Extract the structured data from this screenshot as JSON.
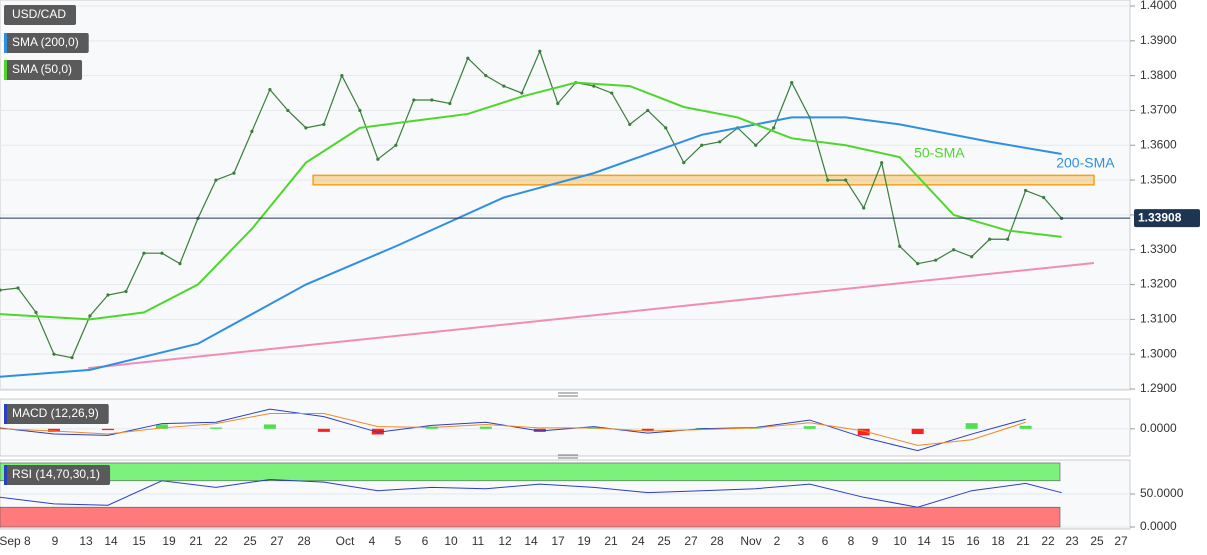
{
  "chart_data": [
    {
      "type": "price",
      "title": "USD/CAD",
      "x": [
        0,
        1,
        2,
        3,
        4,
        5,
        6,
        7,
        8,
        9,
        10,
        11,
        12,
        13,
        14,
        15,
        16,
        17,
        18,
        19,
        20,
        21,
        22,
        23,
        24,
        25,
        26,
        27,
        28,
        29,
        30,
        31,
        32,
        33,
        34,
        35,
        36,
        37,
        38,
        39,
        40,
        41,
        42,
        43,
        44,
        45,
        46,
        47,
        48,
        49,
        50,
        51,
        52,
        53,
        54,
        55,
        56,
        57,
        58,
        59
      ],
      "series": [
        {
          "name": "USD/CAD",
          "color": "#3b7d3b",
          "values": [
            1.3184,
            1.319,
            1.312,
            1.3,
            1.299,
            1.311,
            1.317,
            1.318,
            1.329,
            1.329,
            1.326,
            1.339,
            1.35,
            1.352,
            1.364,
            1.376,
            1.37,
            1.365,
            1.366,
            1.38,
            1.37,
            1.356,
            1.36,
            1.373,
            1.373,
            1.372,
            1.385,
            1.38,
            1.377,
            1.375,
            1.387,
            1.372,
            1.378,
            1.377,
            1.375,
            1.366,
            1.37,
            1.365,
            1.355,
            1.36,
            1.361,
            1.365,
            1.36,
            1.365,
            1.378,
            1.368,
            1.35,
            1.35,
            1.342,
            1.355,
            1.331,
            1.326,
            1.327,
            1.33,
            1.328,
            1.333,
            1.333,
            1.347,
            1.345,
            1.339
          ]
        },
        {
          "name": "SMA (200,0)",
          "color": "#2f8fe0",
          "x": [
            0,
            5,
            11,
            17,
            22,
            28,
            33,
            39,
            44,
            47,
            50,
            55,
            59
          ],
          "values": [
            1.2935,
            1.2955,
            1.303,
            1.32,
            1.331,
            1.345,
            1.352,
            1.363,
            1.368,
            1.368,
            1.366,
            1.361,
            1.3575
          ]
        },
        {
          "name": "SMA (50,0)",
          "color": "#4fd62a",
          "x": [
            0,
            5,
            8,
            11,
            14,
            17,
            20,
            23,
            26,
            29,
            32,
            35,
            38,
            41,
            44,
            47,
            50,
            53,
            56,
            59
          ],
          "values": [
            1.3115,
            1.31,
            1.312,
            1.32,
            1.336,
            1.355,
            1.365,
            1.367,
            1.369,
            1.374,
            1.378,
            1.377,
            1.371,
            1.368,
            1.362,
            1.36,
            1.3566,
            1.34,
            1.3355,
            1.3337
          ]
        }
      ],
      "xlim": [
        0,
        62.8
      ],
      "ylim": [
        1.29,
        1.4
      ],
      "yticks": [
        {
          "value": 1.4,
          "label": "1.4000"
        },
        {
          "value": 1.39,
          "label": "1.3900"
        },
        {
          "value": 1.38,
          "label": "1.3800"
        },
        {
          "value": 1.37,
          "label": "1.3700"
        },
        {
          "value": 1.36,
          "label": "1.3600"
        },
        {
          "value": 1.35,
          "label": "1.3500"
        },
        {
          "value": 1.34,
          "label": "1.3400"
        },
        {
          "value": 1.33,
          "label": "1.3300"
        },
        {
          "value": 1.32,
          "label": "1.3200"
        },
        {
          "value": 1.31,
          "label": "1.3100"
        },
        {
          "value": 1.3,
          "label": "1.3000"
        },
        {
          "value": 1.29,
          "label": "1.2900"
        }
      ],
      "date_labels": [
        "Sep 8",
        "9",
        "13",
        "14",
        "15",
        "19",
        "21",
        "22",
        "25",
        "27",
        "28",
        "Oct",
        "4",
        "5",
        "6",
        "10",
        "11",
        "12",
        "14",
        "17",
        "19",
        "21",
        "24",
        "25",
        "27",
        "28",
        "Nov",
        "2",
        "3",
        "6",
        "8",
        "9",
        "10",
        "14",
        "15",
        "16",
        "18",
        "21",
        "22",
        "23",
        "25",
        "27"
      ],
      "annotations": [
        {
          "text": "50-SMA",
          "x": 50.8,
          "y": 1.3575,
          "color": "#4fd62a"
        },
        {
          "text": "200-SMA",
          "x": 58.7,
          "y": 1.3547,
          "color": "#2f8fe0"
        }
      ],
      "zone": {
        "xlim": [
          17.4,
          60.8
        ],
        "ylim": [
          1.3495,
          1.3505
        ],
        "color": "#f4a21a"
      },
      "trendline": {
        "x": [
          4.9,
          60.8
        ],
        "y": [
          1.296,
          1.3262
        ],
        "color": "#f28cb4"
      },
      "last_price": {
        "value": 1.33908,
        "label": "1.33908"
      }
    },
    {
      "type": "macd",
      "title": "MACD (12,26,9)",
      "x": [
        0,
        3,
        6,
        9,
        12,
        15,
        18,
        21,
        24,
        27,
        30,
        33,
        36,
        39,
        42,
        45,
        48,
        51,
        54,
        57
      ],
      "series": [
        {
          "color": "#2b3fbf",
          "values": [
            0.0002,
            -0.0012,
            -0.0015,
            0.0012,
            0.0015,
            0.0045,
            0.0028,
            -0.0008,
            0.0008,
            0.0015,
            -0.0005,
            0.0005,
            -0.001,
            0.0,
            0.0003,
            0.002,
            -0.002,
            -0.005,
            -0.0012,
            0.0022
          ]
        },
        {
          "color": "#f08a24",
          "values": [
            0.0,
            -0.0005,
            -0.0012,
            0.0002,
            0.0012,
            0.0035,
            0.0035,
            0.0005,
            0.0003,
            0.001,
            0.0002,
            0.0002,
            -0.0005,
            -0.0002,
            0.0002,
            0.0014,
            -0.0005,
            -0.0038,
            -0.0025,
            0.0015
          ]
        }
      ],
      "histogram": [
        0.0002,
        -0.0007,
        -0.0003,
        0.001,
        0.0003,
        0.001,
        -0.0007,
        -0.0013,
        0.0005,
        0.0005,
        -0.0007,
        0.0003,
        -0.0005,
        0.0002,
        0.0001,
        0.0006,
        -0.0015,
        -0.0012,
        0.0013,
        0.0007
      ],
      "up_color": "#4fe04f",
      "down_color": "#ff2020",
      "xlim": [
        0,
        62.8
      ],
      "ylim": [
        -0.006,
        0.0066
      ],
      "yticks": [
        {
          "value": 0,
          "label": "0.0000"
        }
      ]
    },
    {
      "type": "rsi",
      "title": "RSI (14,70,30,1)",
      "x": [
        0,
        3,
        6,
        9,
        12,
        15,
        18,
        21,
        24,
        27,
        30,
        33,
        36,
        39,
        42,
        45,
        48,
        51,
        54,
        57,
        59
      ],
      "values": [
        45,
        35,
        33,
        70,
        60,
        72,
        68,
        55,
        60,
        58,
        65,
        60,
        52,
        55,
        58,
        65,
        45,
        30,
        55,
        66,
        52
      ],
      "color": "#2b3fbf",
      "bands": [
        {
          "ylim": [
            70,
            97
          ],
          "color": "#7cf27c"
        },
        {
          "ylim": [
            0,
            30
          ],
          "color": "#ff7b7b"
        }
      ],
      "xlim": [
        0,
        62.8
      ],
      "ylim": [
        0,
        100
      ],
      "yticks": [
        {
          "value": 50,
          "label": "50.0000"
        },
        {
          "value": 0,
          "label": "0.0000"
        }
      ]
    }
  ]
}
